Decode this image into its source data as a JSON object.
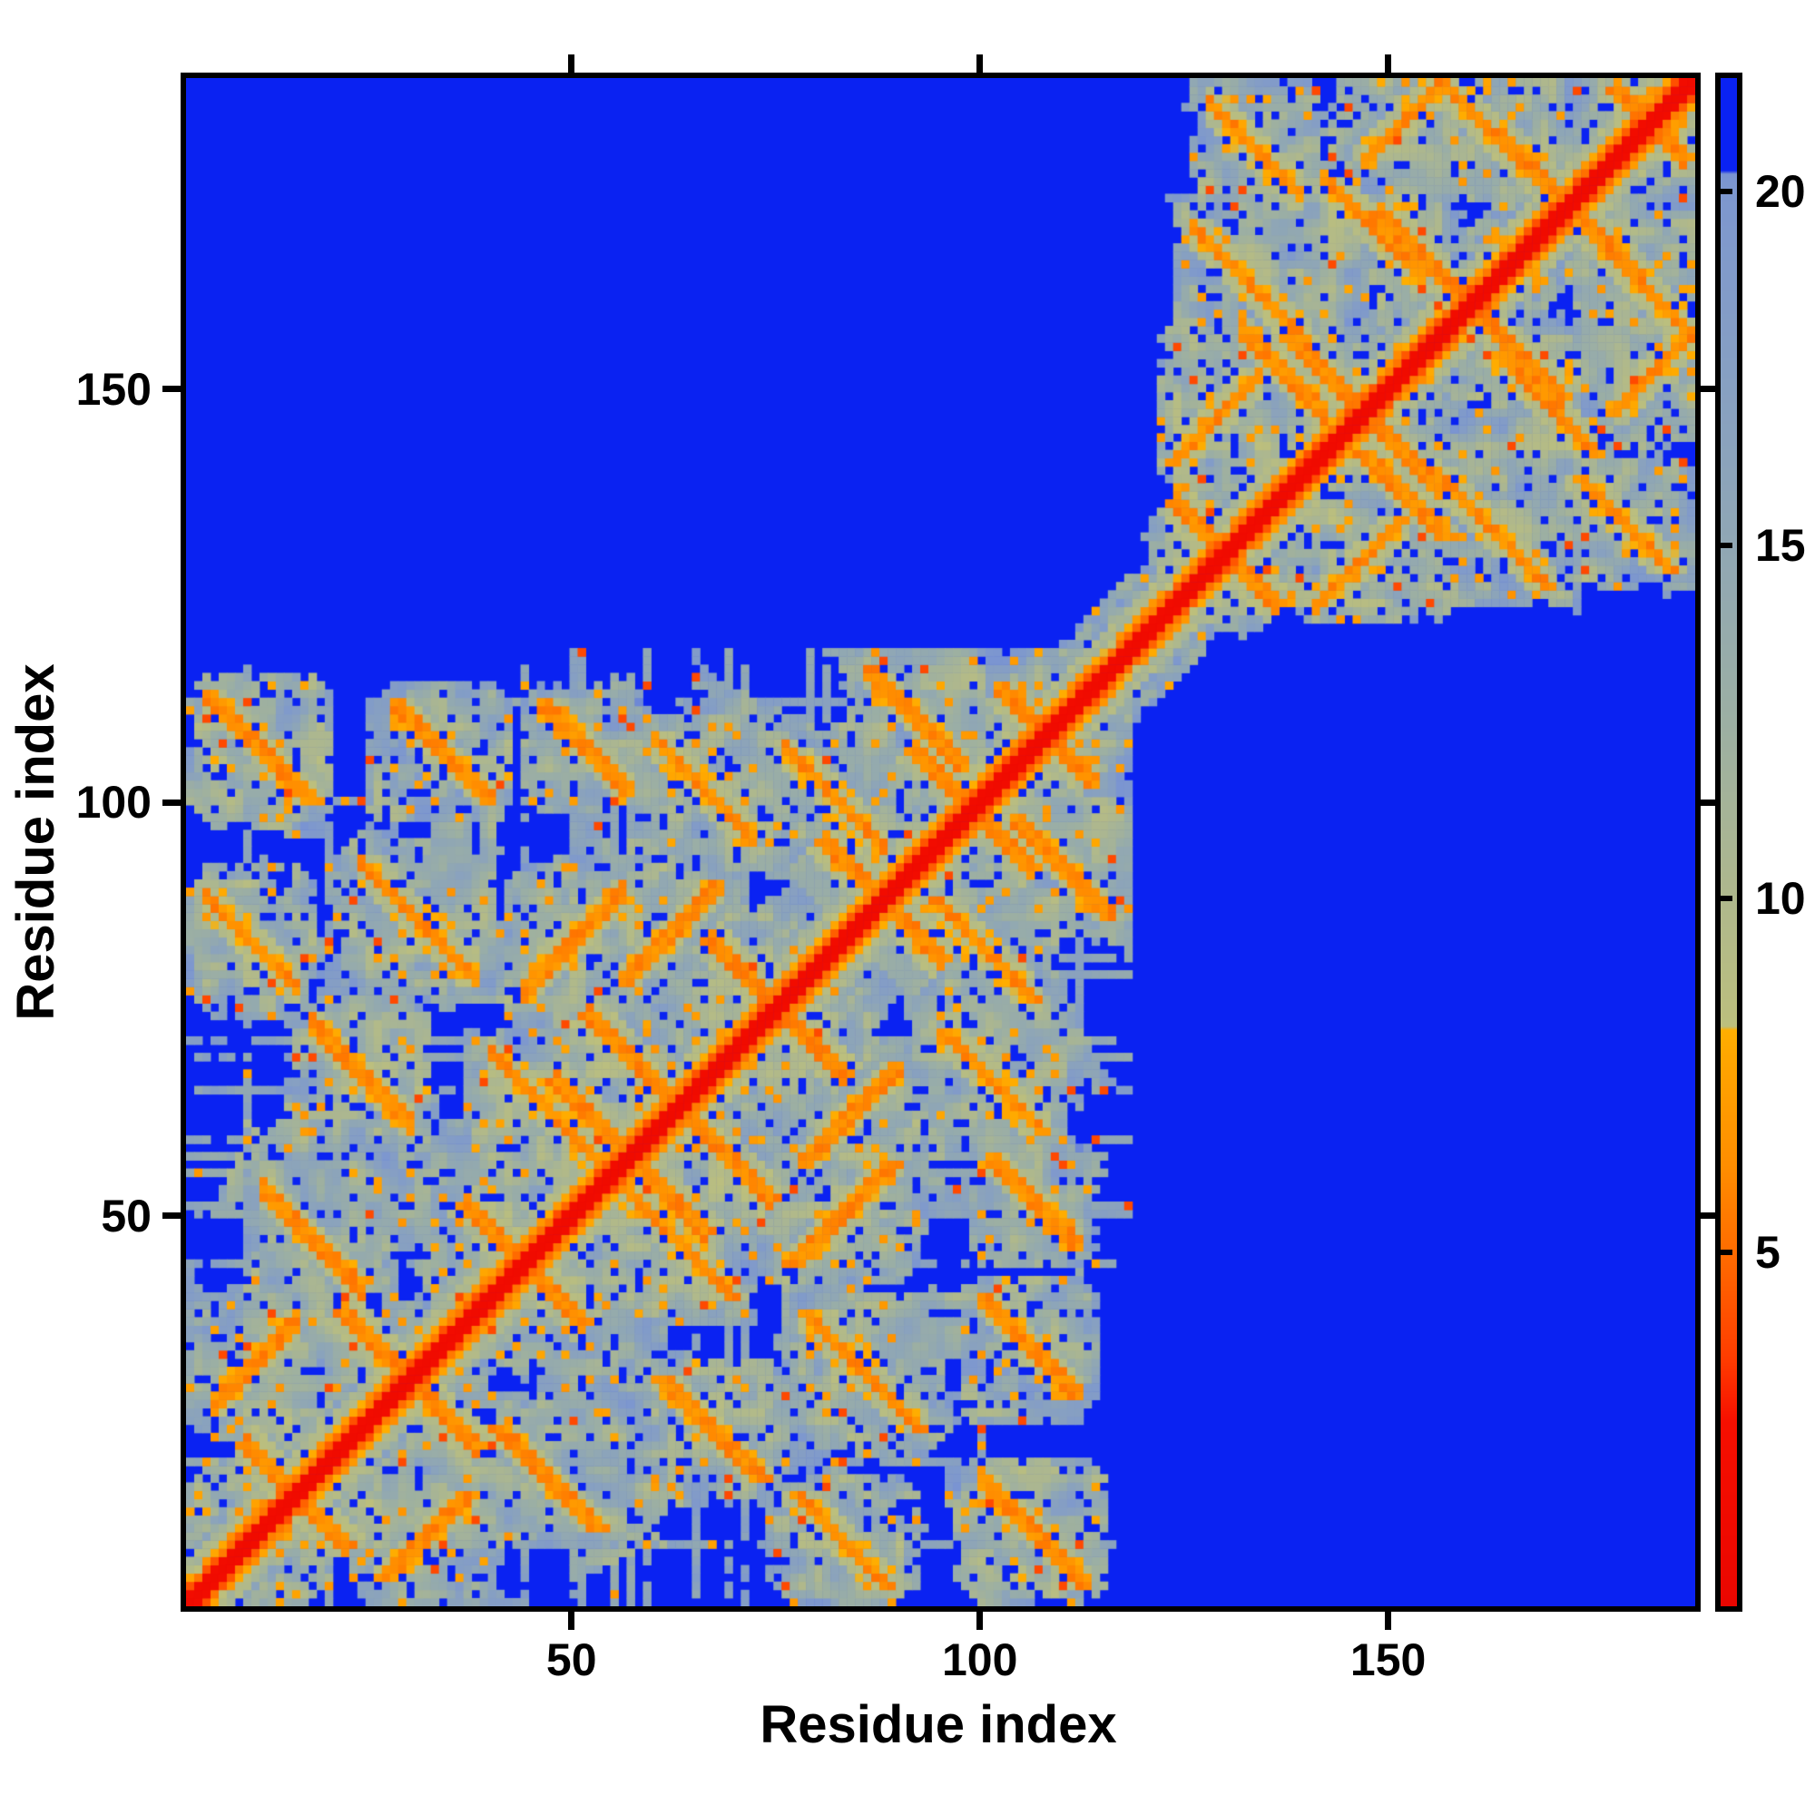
{
  "chart_data": {
    "type": "heatmap",
    "title": "",
    "xlabel": "Residue index",
    "ylabel": "Residue index",
    "x_ticks": [
      50,
      100,
      150
    ],
    "y_ticks": [
      50,
      100,
      150
    ],
    "xlim": [
      2.8,
      187.6
    ],
    "ylim": [
      2.8,
      187.6
    ],
    "grid": false,
    "legend_position": "colorbar-right",
    "colorbar": {
      "ticks": [
        5,
        10,
        15,
        20
      ],
      "vmin": 0,
      "vmax": 21.6,
      "orientation": "vertical"
    },
    "value_semantics": "inter-residue distance matrix: red = closest (self/backbone diagonal), orange = close contacts (~4-8), pale khaki/steel = mid-range (~8-20), blue = far (> ~20.3, background)",
    "colormap_stops": [
      [
        0.0,
        "#ea0600"
      ],
      [
        2.6,
        "#f60f00"
      ],
      [
        3.5,
        "#ff3c00"
      ],
      [
        4.8,
        "#ff6600"
      ],
      [
        6.2,
        "#ff8d00"
      ],
      [
        7.6,
        "#ffa300"
      ],
      [
        8.15,
        "#ffae00"
      ],
      [
        8.2,
        "#bcbf7d"
      ],
      [
        10.0,
        "#afb88c"
      ],
      [
        12.5,
        "#9cafa3"
      ],
      [
        15.0,
        "#90a7b4"
      ],
      [
        17.5,
        "#869fc3"
      ],
      [
        20.0,
        "#7d97cf"
      ],
      [
        20.25,
        "#7a94d2"
      ],
      [
        20.3,
        "#0a22f2"
      ],
      [
        21.6,
        "#0a22f2"
      ]
    ],
    "matrix_model": {
      "note": "Pixel-estimated generative summary of the depicted symmetric distance matrix (exact per-cell values not resolvable).",
      "residue_range": [
        3,
        187
      ],
      "domains": [
        [
          3,
          118
        ],
        [
          122,
          187
        ]
      ],
      "linker_diagonal_only": [
        113,
        127
      ],
      "diagonal_band": {
        "red_halfwidth": 1,
        "orange_halfwidth": 3,
        "halo_halfwidth": 9
      },
      "hairpins": [
        {
          "apex": 16,
          "len": 7
        },
        {
          "apex": 30,
          "len": 9
        },
        {
          "apex": 44,
          "len": 8
        },
        {
          "apex": 57,
          "len": 10
        },
        {
          "apex": 63,
          "len": 12
        },
        {
          "apex": 75,
          "len": 9
        },
        {
          "apex": 88,
          "len": 8
        },
        {
          "apex": 99,
          "len": 8
        },
        {
          "apex": 108,
          "len": 6
        },
        {
          "apex": 130,
          "len": 7
        },
        {
          "apex": 147,
          "len": 10
        },
        {
          "apex": 160,
          "len": 12
        },
        {
          "apex": 172,
          "len": 9
        },
        {
          "apex": 182,
          "len": 5
        }
      ],
      "contact_pairs": [
        {
          "a": [
            5,
            18
          ],
          "b": [
            100,
            113
          ],
          "dir": "anti"
        },
        {
          "a": [
            28,
            40
          ],
          "b": [
            100,
            112
          ],
          "dir": "anti"
        },
        {
          "a": [
            46,
            57
          ],
          "b": [
            101,
            112
          ],
          "dir": "anti"
        },
        {
          "a": [
            60,
            72
          ],
          "b": [
            95,
            108
          ],
          "dir": "anti"
        },
        {
          "a": [
            5,
            16
          ],
          "b": [
            76,
            90
          ],
          "dir": "anti"
        },
        {
          "a": [
            24,
            38
          ],
          "b": [
            78,
            93
          ],
          "dir": "anti"
        },
        {
          "a": [
            40,
            53
          ],
          "b": [
            56,
            70
          ],
          "dir": "anti"
        },
        {
          "a": [
            12,
            24
          ],
          "b": [
            40,
            54
          ],
          "dir": "anti"
        },
        {
          "a": [
            56,
            68
          ],
          "b": [
            78,
            90
          ],
          "dir": "par"
        },
        {
          "a": [
            76,
            88
          ],
          "b": [
            94,
            107
          ],
          "dir": "anti"
        },
        {
          "a": [
            6,
            16
          ],
          "b": [
            26,
            38
          ],
          "dir": "par"
        },
        {
          "a": [
            18,
            30
          ],
          "b": [
            60,
            74
          ],
          "dir": "anti"
        },
        {
          "a": [
            44,
            56
          ],
          "b": [
            76,
            90
          ],
          "dir": "par"
        },
        {
          "a": [
            86,
            98
          ],
          "b": [
            104,
            116
          ],
          "dir": "anti"
        },
        {
          "a": [
            126,
            140
          ],
          "b": [
            155,
            170
          ],
          "dir": "anti"
        },
        {
          "a": [
            128,
            139
          ],
          "b": [
            172,
            186
          ],
          "dir": "anti"
        },
        {
          "a": [
            142,
            154
          ],
          "b": [
            163,
            176
          ],
          "dir": "anti"
        },
        {
          "a": [
            156,
            168
          ],
          "b": [
            176,
            187
          ],
          "dir": "anti"
        },
        {
          "a": [
            124,
            134
          ],
          "b": [
            141,
            152
          ],
          "dir": "par"
        },
        {
          "a": [
            146,
            158
          ],
          "b": [
            178,
            187
          ],
          "dir": "par"
        },
        {
          "a": [
            132,
            142
          ],
          "b": [
            146,
            158
          ],
          "dir": "anti"
        }
      ]
    }
  },
  "axes": {
    "x_title": "Residue index",
    "y_title": "Residue index",
    "x_tick_labels": [
      "50",
      "100",
      "150"
    ],
    "y_tick_labels": [
      "50",
      "100",
      "150"
    ],
    "colorbar_tick_labels": [
      "5",
      "10",
      "15",
      "20"
    ]
  },
  "colors": {
    "background": "#ffffff",
    "frame": "#000000",
    "far_blue": "#0a22f2",
    "diagonal_red": "#ee0900",
    "contact_orange": "#ff9700",
    "midrange_khaki": "#b2ba8b",
    "midrange_steel": "#87a0c2"
  }
}
